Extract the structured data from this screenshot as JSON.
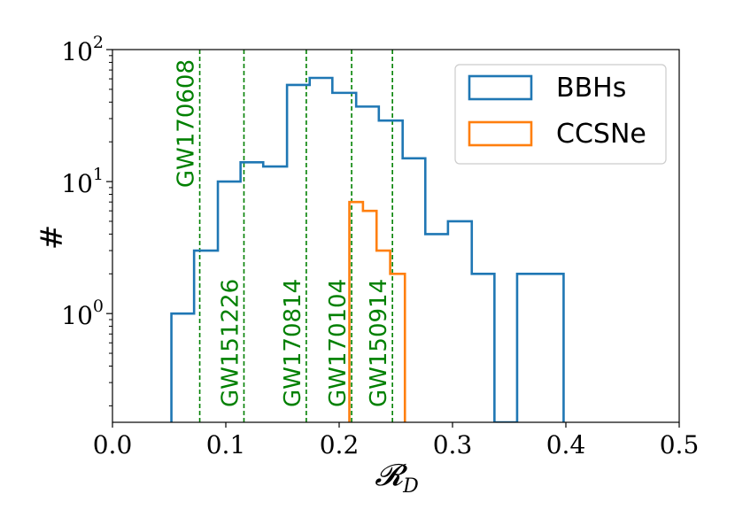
{
  "chart_data": {
    "type": "histogram",
    "title": "",
    "xlabel": "𝓡",
    "xlabel_sub": "D",
    "ylabel": "#",
    "xlim": [
      0.0,
      0.5
    ],
    "ylim": [
      0.15,
      100
    ],
    "yscale": "log",
    "grid": false,
    "legend_position": "upper-right",
    "xticks": [
      0.0,
      0.1,
      0.2,
      0.3,
      0.4,
      0.5
    ],
    "xtick_labels": [
      "0.0",
      "0.1",
      "0.2",
      "0.3",
      "0.4",
      "0.5"
    ],
    "yticks": [
      {
        "value": 1,
        "base": "10",
        "exp": "0"
      },
      {
        "value": 10,
        "base": "10",
        "exp": "1"
      },
      {
        "value": 100,
        "base": "10",
        "exp": "2"
      }
    ],
    "series": [
      {
        "name": "BBHs",
        "color": "#1f77b4",
        "bins": [
          {
            "x0": 0.052,
            "x1": 0.072,
            "count": 1
          },
          {
            "x0": 0.072,
            "x1": 0.093,
            "count": 3
          },
          {
            "x0": 0.093,
            "x1": 0.113,
            "count": 10
          },
          {
            "x0": 0.113,
            "x1": 0.133,
            "count": 14
          },
          {
            "x0": 0.133,
            "x1": 0.154,
            "count": 13
          },
          {
            "x0": 0.154,
            "x1": 0.174,
            "count": 54
          },
          {
            "x0": 0.174,
            "x1": 0.194,
            "count": 61
          },
          {
            "x0": 0.194,
            "x1": 0.215,
            "count": 47
          },
          {
            "x0": 0.215,
            "x1": 0.235,
            "count": 37
          },
          {
            "x0": 0.235,
            "x1": 0.256,
            "count": 29
          },
          {
            "x0": 0.256,
            "x1": 0.276,
            "count": 15
          },
          {
            "x0": 0.276,
            "x1": 0.296,
            "count": 4
          },
          {
            "x0": 0.296,
            "x1": 0.317,
            "count": 5
          },
          {
            "x0": 0.317,
            "x1": 0.337,
            "count": 2
          },
          {
            "x0": 0.337,
            "x1": 0.357,
            "count": 0
          },
          {
            "x0": 0.357,
            "x1": 0.378,
            "count": 2
          },
          {
            "x0": 0.378,
            "x1": 0.398,
            "count": 2
          }
        ]
      },
      {
        "name": "CCSNe",
        "color": "#ff7f0e",
        "bins": [
          {
            "x0": 0.209,
            "x1": 0.221,
            "count": 7
          },
          {
            "x0": 0.221,
            "x1": 0.233,
            "count": 6
          },
          {
            "x0": 0.233,
            "x1": 0.245,
            "count": 3
          },
          {
            "x0": 0.245,
            "x1": 0.258,
            "count": 2
          }
        ]
      }
    ],
    "events": [
      {
        "label": "GW170608",
        "x": 0.077,
        "label_position": "top"
      },
      {
        "label": "GW151226",
        "x": 0.116,
        "label_position": "bottom"
      },
      {
        "label": "GW170814",
        "x": 0.171,
        "label_position": "bottom"
      },
      {
        "label": "GW170104",
        "x": 0.211,
        "label_position": "bottom"
      },
      {
        "label": "GW150914",
        "x": 0.247,
        "label_position": "bottom"
      }
    ],
    "event_color": "#008000"
  }
}
